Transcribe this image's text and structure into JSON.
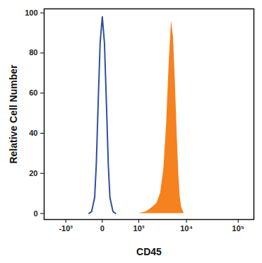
{
  "chart_data": {
    "type": "line",
    "xlabel": "CD45",
    "ylabel": "Relative Cell Number",
    "xlim": [
      -3000,
      200000
    ],
    "xticks": [
      {
        "value": -1000,
        "label": "-10³"
      },
      0,
      {
        "value": 1000,
        "label": "10³"
      },
      {
        "value": 10000,
        "label": "10⁴"
      },
      {
        "value": 100000,
        "label": "10⁵"
      }
    ],
    "ylim": [
      -3,
      102
    ],
    "yticks": [
      0,
      20,
      40,
      60,
      80,
      100
    ],
    "grid": false,
    "series": [
      {
        "type": "area",
        "color": "#f5821f",
        "x": [
          1000,
          1500,
          2000,
          2500,
          3000,
          3500,
          4000,
          4500,
          5000,
          5500,
          6000,
          6500,
          7000,
          7500,
          8000,
          9000
        ],
        "values": [
          0,
          1,
          3,
          5,
          10,
          22,
          45,
          75,
          96,
          88,
          65,
          40,
          20,
          8,
          3,
          0
        ]
      },
      {
        "type": "line",
        "color": "#2f4f9f",
        "x": [
          -200,
          -150,
          -100,
          -75,
          -50,
          -25,
          0,
          25,
          50,
          75,
          100,
          150,
          200
        ],
        "values": [
          0,
          1,
          8,
          25,
          55,
          85,
          98,
          85,
          55,
          25,
          8,
          1,
          0
        ]
      }
    ]
  }
}
